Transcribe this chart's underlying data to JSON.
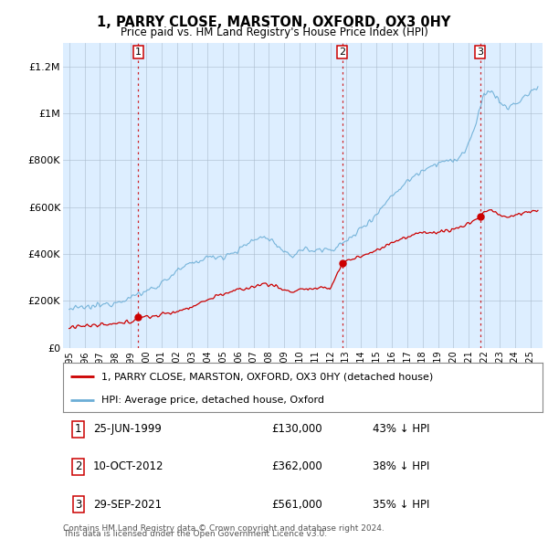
{
  "title": "1, PARRY CLOSE, MARSTON, OXFORD, OX3 0HY",
  "subtitle": "Price paid vs. HM Land Registry's House Price Index (HPI)",
  "ylabel_ticks": [
    "£0",
    "£200K",
    "£400K",
    "£600K",
    "£800K",
    "£1M",
    "£1.2M"
  ],
  "ytick_values": [
    0,
    200000,
    400000,
    600000,
    800000,
    1000000,
    1200000
  ],
  "ylim": [
    0,
    1300000
  ],
  "xlim_start": 1994.6,
  "xlim_end": 2025.8,
  "hpi_color": "#6baed6",
  "hpi_fill_color": "#ddeeff",
  "price_color": "#cc0000",
  "vline_color": "#cc0000",
  "transactions": [
    {
      "num": 1,
      "date_label": "25-JUN-1999",
      "year": 1999.48,
      "price": 130000,
      "pct": "43% ↓ HPI"
    },
    {
      "num": 2,
      "date_label": "10-OCT-2012",
      "year": 2012.78,
      "price": 362000,
      "pct": "38% ↓ HPI"
    },
    {
      "num": 3,
      "date_label": "29-SEP-2021",
      "year": 2021.75,
      "price": 561000,
      "pct": "35% ↓ HPI"
    }
  ],
  "legend_entries": [
    "1, PARRY CLOSE, MARSTON, OXFORD, OX3 0HY (detached house)",
    "HPI: Average price, detached house, Oxford"
  ],
  "footer_line1": "Contains HM Land Registry data © Crown copyright and database right 2024.",
  "footer_line2": "This data is licensed under the Open Government Licence v3.0.",
  "background_color": "#ffffff",
  "plot_bg_color": "#ddeeff",
  "grid_color": "#aabbcc",
  "title_fontsize": 10.5,
  "subtitle_fontsize": 8.5,
  "tick_fontsize": 8,
  "legend_fontsize": 8,
  "table_fontsize": 8.5,
  "footer_fontsize": 6.5
}
